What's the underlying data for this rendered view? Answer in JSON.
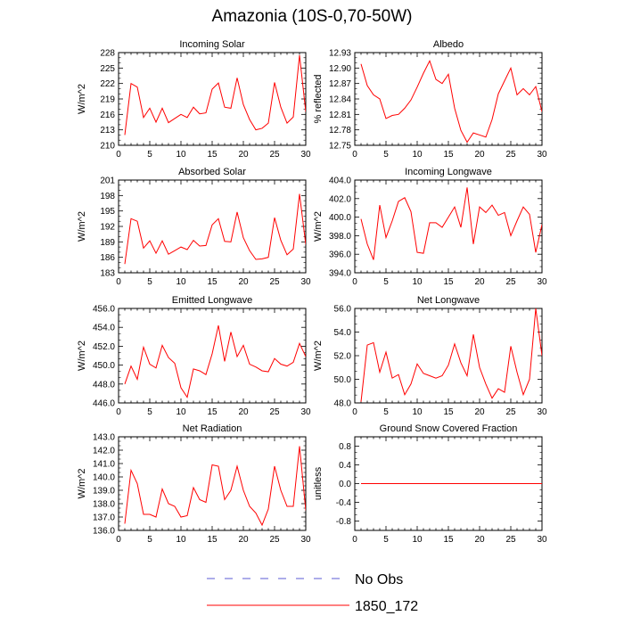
{
  "figure": {
    "title": "Amazonia (10S-0,70-50W)"
  },
  "chart_data": [
    {
      "type": "line",
      "title": "Incoming Solar",
      "ylabel": "W/m^2",
      "xlim": [
        0,
        30
      ],
      "ylim": [
        210,
        228
      ],
      "xticks": [
        0,
        5,
        10,
        15,
        20,
        25,
        30
      ],
      "yticks": [
        "210",
        "213",
        "216",
        "219",
        "222",
        "225",
        "228"
      ],
      "x": [
        1,
        2,
        3,
        4,
        5,
        6,
        7,
        8,
        9,
        10,
        11,
        12,
        13,
        14,
        15,
        16,
        17,
        18,
        19,
        20,
        21,
        22,
        23,
        24,
        25,
        26,
        27,
        28,
        29,
        30
      ],
      "series": [
        {
          "name": "1850_172",
          "values": [
            212.0,
            222.0,
            221.3,
            215.4,
            217.2,
            214.5,
            217.2,
            214.4,
            215.2,
            216.0,
            215.4,
            217.4,
            216.1,
            216.3,
            220.9,
            222.1,
            217.4,
            217.2,
            223.1,
            217.9,
            215.0,
            213.0,
            213.3,
            214.3,
            222.2,
            217.4,
            214.3,
            215.5,
            227.5,
            216.5
          ]
        }
      ]
    },
    {
      "type": "line",
      "title": "Albedo",
      "ylabel": "% reflected",
      "xlim": [
        0,
        30
      ],
      "ylim": [
        12.75,
        12.93
      ],
      "xticks": [
        0,
        5,
        10,
        15,
        20,
        25,
        30
      ],
      "yticks": [
        "12.75",
        "12.78",
        "12.81",
        "12.84",
        "12.87",
        "12.90",
        "12.93"
      ],
      "x": [
        1,
        2,
        3,
        4,
        5,
        6,
        7,
        8,
        9,
        10,
        11,
        12,
        13,
        14,
        15,
        16,
        17,
        18,
        19,
        20,
        21,
        22,
        23,
        24,
        25,
        26,
        27,
        28,
        29,
        30
      ],
      "series": [
        {
          "name": "1850_172",
          "values": [
            12.908,
            12.866,
            12.848,
            12.84,
            12.802,
            12.808,
            12.81,
            12.822,
            12.838,
            12.863,
            12.89,
            12.914,
            12.878,
            12.87,
            12.888,
            12.822,
            12.779,
            12.756,
            12.774,
            12.77,
            12.766,
            12.8,
            12.85,
            12.875,
            12.9,
            12.848,
            12.86,
            12.848,
            12.864,
            12.815
          ]
        }
      ]
    },
    {
      "type": "line",
      "title": "Absorbed Solar",
      "ylabel": "W/m^2",
      "xlim": [
        0,
        30
      ],
      "ylim": [
        183,
        201
      ],
      "xticks": [
        0,
        5,
        10,
        15,
        20,
        25,
        30
      ],
      "yticks": [
        "183",
        "186",
        "189",
        "192",
        "195",
        "198",
        "201"
      ],
      "x": [
        1,
        2,
        3,
        4,
        5,
        6,
        7,
        8,
        9,
        10,
        11,
        12,
        13,
        14,
        15,
        16,
        17,
        18,
        19,
        20,
        21,
        22,
        23,
        24,
        25,
        26,
        27,
        28,
        29,
        30
      ],
      "series": [
        {
          "name": "1850_172",
          "values": [
            184.7,
            193.5,
            193.0,
            187.8,
            189.2,
            186.8,
            189.2,
            186.6,
            187.3,
            188.0,
            187.5,
            189.3,
            188.2,
            188.3,
            192.3,
            193.5,
            189.1,
            189.0,
            194.8,
            189.8,
            187.3,
            185.6,
            185.7,
            186.0,
            193.7,
            189.3,
            186.5,
            187.6,
            198.3,
            188.5
          ]
        }
      ]
    },
    {
      "type": "line",
      "title": "Incoming Longwave",
      "ylabel": "W/m^2",
      "xlim": [
        0,
        30
      ],
      "ylim": [
        394,
        404
      ],
      "xticks": [
        0,
        5,
        10,
        15,
        20,
        25,
        30
      ],
      "yticks": [
        "394.0",
        "396.0",
        "398.0",
        "400.0",
        "402.0",
        "404.0"
      ],
      "x": [
        1,
        2,
        3,
        4,
        5,
        6,
        7,
        8,
        9,
        10,
        11,
        12,
        13,
        14,
        15,
        16,
        17,
        18,
        19,
        20,
        21,
        22,
        23,
        24,
        25,
        26,
        27,
        28,
        29,
        30
      ],
      "series": [
        {
          "name": "1850_172",
          "values": [
            399.8,
            397.1,
            395.4,
            401.3,
            397.8,
            399.6,
            401.7,
            402.1,
            400.6,
            396.2,
            396.1,
            399.4,
            399.4,
            398.9,
            400.0,
            401.1,
            398.9,
            403.2,
            397.1,
            401.1,
            400.5,
            401.3,
            400.2,
            400.5,
            398.0,
            399.6,
            401.1,
            400.3,
            396.2,
            399.2
          ]
        }
      ]
    },
    {
      "type": "line",
      "title": "Emitted Longwave",
      "ylabel": "W/m^2",
      "xlim": [
        0,
        30
      ],
      "ylim": [
        446,
        456
      ],
      "xticks": [
        0,
        5,
        10,
        15,
        20,
        25,
        30
      ],
      "yticks": [
        "446.0",
        "448.0",
        "450.0",
        "452.0",
        "454.0",
        "456.0"
      ],
      "x": [
        1,
        2,
        3,
        4,
        5,
        6,
        7,
        8,
        9,
        10,
        11,
        12,
        13,
        14,
        15,
        16,
        17,
        18,
        19,
        20,
        21,
        22,
        23,
        24,
        25,
        26,
        27,
        28,
        29,
        30
      ],
      "series": [
        {
          "name": "1850_172",
          "values": [
            448.0,
            449.9,
            448.5,
            451.9,
            450.1,
            449.7,
            452.1,
            450.8,
            450.2,
            447.6,
            446.6,
            449.6,
            449.4,
            449.0,
            451.2,
            454.2,
            450.4,
            453.5,
            450.9,
            452.1,
            450.1,
            449.8,
            449.4,
            449.3,
            450.7,
            450.1,
            449.9,
            450.3,
            452.3,
            450.9
          ]
        }
      ]
    },
    {
      "type": "line",
      "title": "Net Longwave",
      "ylabel": "W/m^2",
      "xlim": [
        0,
        30
      ],
      "ylim": [
        48,
        56
      ],
      "xticks": [
        0,
        5,
        10,
        15,
        20,
        25,
        30
      ],
      "yticks": [
        "48.0",
        "50.0",
        "52.0",
        "54.0",
        "56.0"
      ],
      "x": [
        1,
        2,
        3,
        4,
        5,
        6,
        7,
        8,
        9,
        10,
        11,
        12,
        13,
        14,
        15,
        16,
        17,
        18,
        19,
        20,
        21,
        22,
        23,
        24,
        25,
        26,
        27,
        28,
        29,
        30
      ],
      "series": [
        {
          "name": "1850_172",
          "values": [
            48.1,
            52.9,
            53.1,
            50.6,
            52.3,
            50.1,
            50.4,
            48.7,
            49.6,
            51.3,
            50.5,
            50.3,
            50.1,
            50.3,
            51.2,
            53.0,
            51.4,
            50.3,
            53.8,
            51.0,
            49.6,
            48.4,
            49.2,
            48.9,
            52.8,
            50.6,
            48.7,
            50.0,
            56.0,
            52.0
          ]
        }
      ]
    },
    {
      "type": "line",
      "title": "Net Radiation",
      "ylabel": "W/m^2",
      "xlim": [
        0,
        30
      ],
      "ylim": [
        136,
        143
      ],
      "xticks": [
        0,
        5,
        10,
        15,
        20,
        25,
        30
      ],
      "yticks": [
        "136.0",
        "137.0",
        "138.0",
        "139.0",
        "140.0",
        "141.0",
        "142.0",
        "143.0"
      ],
      "x": [
        1,
        2,
        3,
        4,
        5,
        6,
        7,
        8,
        9,
        10,
        11,
        12,
        13,
        14,
        15,
        16,
        17,
        18,
        19,
        20,
        21,
        22,
        23,
        24,
        25,
        26,
        27,
        28,
        29,
        30
      ],
      "series": [
        {
          "name": "1850_172",
          "values": [
            136.5,
            140.5,
            139.5,
            137.2,
            137.2,
            137.0,
            139.1,
            138.0,
            137.8,
            137.0,
            137.1,
            139.2,
            138.3,
            138.1,
            140.9,
            140.8,
            138.3,
            139.0,
            140.8,
            139.0,
            137.8,
            137.3,
            136.4,
            137.6,
            140.8,
            139.0,
            137.8,
            137.8,
            142.3,
            137.5
          ]
        }
      ]
    },
    {
      "type": "line",
      "title": "Ground Snow Covered Fraction",
      "ylabel": "unitless",
      "xlim": [
        0,
        30
      ],
      "ylim": [
        -1,
        1
      ],
      "xticks": [
        0,
        5,
        10,
        15,
        20,
        25,
        30
      ],
      "yticks": [
        "-0.8",
        "-0.4",
        "0.0",
        "0.4",
        "0.8"
      ],
      "ytickvals": [
        -0.8,
        -0.4,
        0.0,
        0.4,
        0.8
      ],
      "x": [
        1,
        2,
        3,
        4,
        5,
        6,
        7,
        8,
        9,
        10,
        11,
        12,
        13,
        14,
        15,
        16,
        17,
        18,
        19,
        20,
        21,
        22,
        23,
        24,
        25,
        26,
        27,
        28,
        29,
        30
      ],
      "series": [
        {
          "name": "1850_172",
          "values": [
            0,
            0,
            0,
            0,
            0,
            0,
            0,
            0,
            0,
            0,
            0,
            0,
            0,
            0,
            0,
            0,
            0,
            0,
            0,
            0,
            0,
            0,
            0,
            0,
            0,
            0,
            0,
            0,
            0,
            0
          ]
        }
      ]
    }
  ],
  "legend": {
    "items": [
      {
        "label": "No Obs",
        "color": "#5b5bd6",
        "dash": "dashed"
      },
      {
        "label": "1850_172",
        "color": "#ff0000",
        "dash": "solid"
      }
    ]
  },
  "colors": {
    "series": "#ff0000",
    "obs": "#5b5bd6",
    "axis": "#000000"
  }
}
